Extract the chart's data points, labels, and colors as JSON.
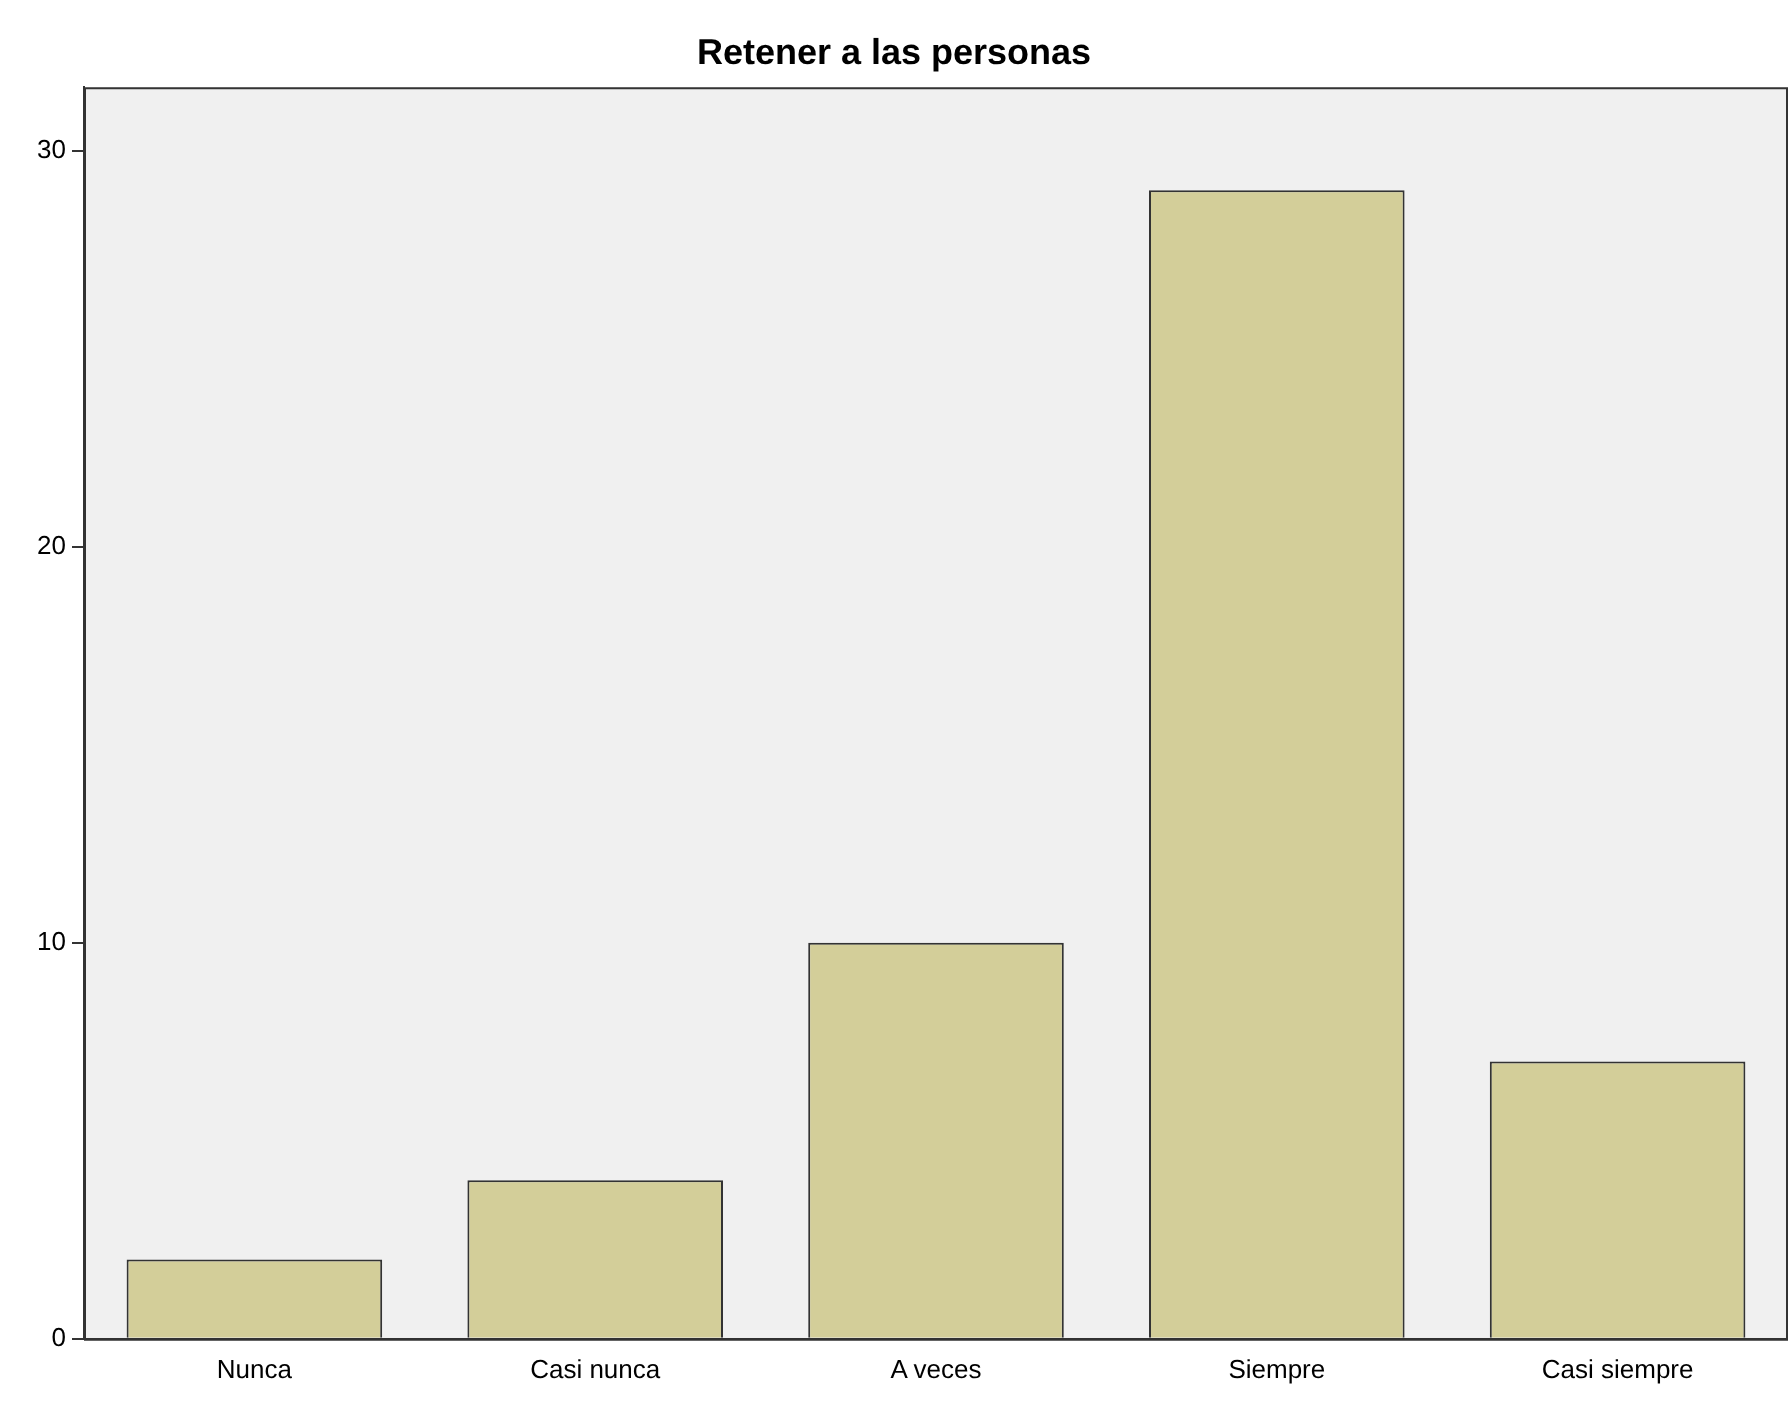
{
  "chart_data": {
    "type": "bar",
    "title": "Retener a las personas",
    "categories": [
      "Nunca",
      "Casi nunca",
      "A veces",
      "Siempre",
      "Casi siempre"
    ],
    "values": [
      2,
      4,
      10,
      29,
      7
    ],
    "color": "#d3ce99",
    "ylim": [
      0,
      31.6
    ],
    "yticks": [
      0,
      10,
      20,
      30
    ],
    "grid": false,
    "legend": false
  }
}
